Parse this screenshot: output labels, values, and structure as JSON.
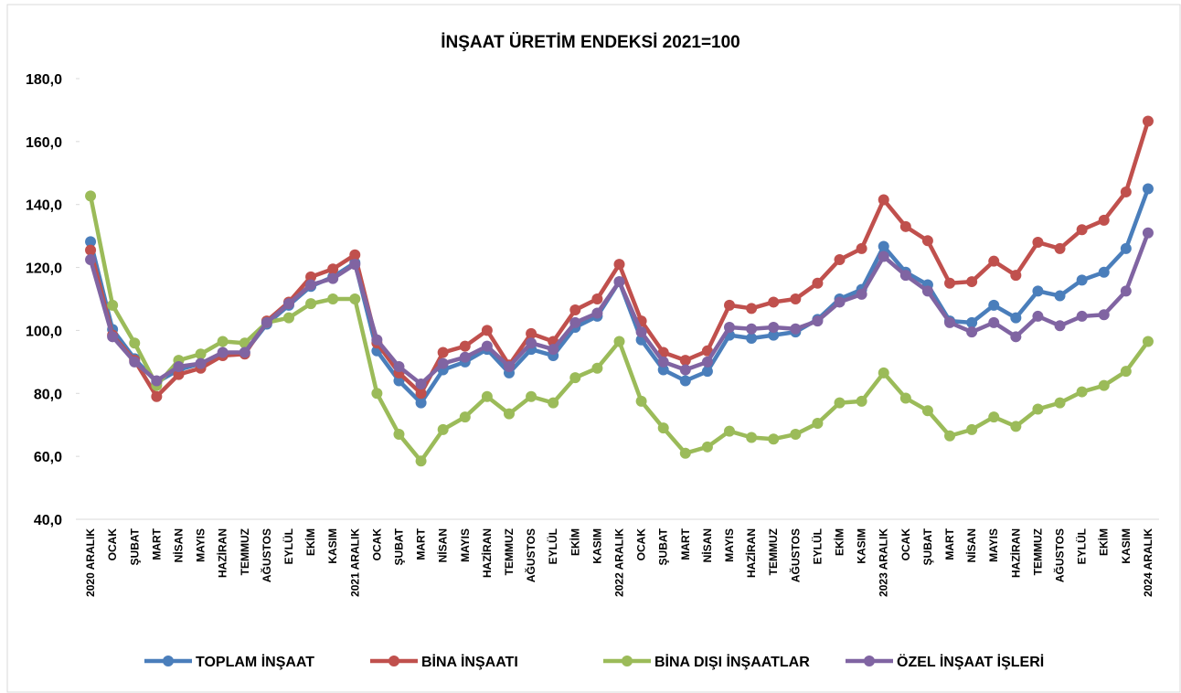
{
  "chart_data": {
    "type": "line",
    "title": "İNŞAAT ÜRETİM ENDEKSİ 2021=100",
    "categories": [
      "2020 ARALIK",
      "OCAK",
      "ŞUBAT",
      "MART",
      "NİSAN",
      "MAYIS",
      "HAZİRAN",
      "TEMMUZ",
      "AĞUSTOS",
      "EYLÜL",
      "EKİM",
      "KASIM",
      "2021 ARALIK",
      "OCAK",
      "ŞUBAT",
      "MART",
      "NİSAN",
      "MAYIS",
      "HAZİRAN",
      "TEMMUZ",
      "AĞUSTOS",
      "EYLÜL",
      "EKİM",
      "KASIM",
      "2022 ARALIK",
      "OCAK",
      "ŞUBAT",
      "MART",
      "NİSAN",
      "MAYIS",
      "HAZİRAN",
      "TEMMUZ",
      "AĞUSTOS",
      "EYLÜL",
      "EKİM",
      "KASIM",
      "2023 ARALIK",
      "OCAK",
      "ŞUBAT",
      "MART",
      "NİSAN",
      "MAYIS",
      "HAZİRAN",
      "TEMMUZ",
      "AĞUSTOS",
      "EYLÜL",
      "EKİM",
      "KASIM",
      "2024 ARALIK"
    ],
    "series": [
      {
        "name": "TOPLAM İNŞAAT",
        "color": "#4a7ebb",
        "values": [
          128.2,
          100.3,
          91,
          83.5,
          87.5,
          89.5,
          92.5,
          93,
          102,
          108,
          114,
          117,
          121.5,
          93.5,
          84,
          77,
          87.5,
          90,
          94,
          86.5,
          94,
          92,
          101,
          104.5,
          115.5,
          97,
          87.5,
          84,
          87,
          98.5,
          97.5,
          98.5,
          99.5,
          103.5,
          110,
          113,
          126.7,
          118.5,
          114.5,
          103,
          102.5,
          108,
          104,
          112.5,
          111,
          116,
          118.5,
          126,
          145
        ]
      },
      {
        "name": "BİNA İNŞAATI",
        "color": "#c0504d",
        "values": [
          125.5,
          98.5,
          90.5,
          79,
          86,
          88,
          92,
          92.5,
          103,
          109,
          117,
          119.5,
          124,
          96,
          86.5,
          80,
          93,
          95,
          100,
          89,
          99,
          96.5,
          106.5,
          110,
          121,
          103,
          93,
          90.5,
          93.5,
          108,
          107,
          109,
          110,
          115,
          122.5,
          126,
          141.5,
          133,
          128.5,
          115,
          115.5,
          122,
          117.5,
          128,
          126,
          132,
          135,
          144,
          166.5
        ]
      },
      {
        "name": "BİNA DIŞI İNŞAATLAR",
        "color": "#9bbb59",
        "values": [
          142.7,
          108,
          96,
          82.5,
          90.5,
          92.5,
          96.5,
          96,
          102.5,
          104,
          108.5,
          110,
          110,
          80,
          67,
          58.5,
          68.5,
          72.5,
          79,
          73.5,
          79,
          77,
          85,
          88,
          96.5,
          77.5,
          69,
          61,
          63,
          68,
          66,
          65.5,
          67,
          70.5,
          77,
          77.5,
          86.5,
          78.5,
          74.5,
          66.5,
          68.5,
          72.5,
          69.5,
          75,
          77,
          80.5,
          82.5,
          87,
          96.5
        ]
      },
      {
        "name": "ÖZEL İNŞAAT İŞLERİ",
        "color": "#8064a2",
        "values": [
          122.5,
          98,
          90,
          84,
          88.5,
          89.5,
          93,
          93,
          102.5,
          108.5,
          114.5,
          116.5,
          121,
          97,
          88.5,
          83,
          89.5,
          91.5,
          95,
          88.5,
          96,
          94,
          102.5,
          105.5,
          115.5,
          99.5,
          90,
          87.5,
          90,
          101,
          100.5,
          101,
          100.5,
          103,
          109,
          111.5,
          123.5,
          117.5,
          112.5,
          102.5,
          99.5,
          102.5,
          98,
          104.5,
          101.5,
          104.5,
          105,
          112.5,
          131
        ]
      }
    ],
    "ylim": [
      40,
      180
    ],
    "yticks": [
      {
        "value": 40,
        "label": "40,0"
      },
      {
        "value": 60,
        "label": "60,0"
      },
      {
        "value": 80,
        "label": "80,0"
      },
      {
        "value": 100,
        "label": "100,0"
      },
      {
        "value": 120,
        "label": "120,0"
      },
      {
        "value": 140,
        "label": "140,0"
      },
      {
        "value": 160,
        "label": "160,0"
      },
      {
        "value": 180,
        "label": "180,0"
      }
    ],
    "grid": false,
    "legend": "bottom"
  }
}
